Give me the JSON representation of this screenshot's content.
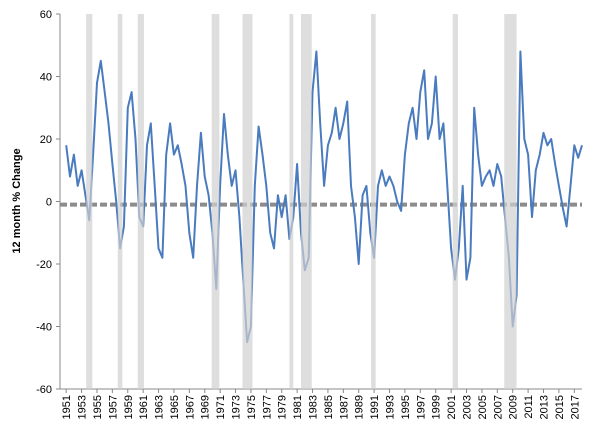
{
  "chart_data": {
    "type": "line",
    "y_label": "12 month % Change",
    "x": [
      1951,
      1951.5,
      1952,
      1952.5,
      1953,
      1953.5,
      1954,
      1954.5,
      1955,
      1955.5,
      1956,
      1956.5,
      1957,
      1957.5,
      1958,
      1958.5,
      1959,
      1959.5,
      1960,
      1960.5,
      1961,
      1961.5,
      1962,
      1962.5,
      1963,
      1963.5,
      1964,
      1964.5,
      1965,
      1965.5,
      1966,
      1966.5,
      1967,
      1967.5,
      1968,
      1968.5,
      1969,
      1969.5,
      1970,
      1970.5,
      1971,
      1971.5,
      1972,
      1972.5,
      1973,
      1973.5,
      1974,
      1974.5,
      1975,
      1975.5,
      1976,
      1976.5,
      1977,
      1977.5,
      1978,
      1978.5,
      1979,
      1979.5,
      1980,
      1980.5,
      1981,
      1981.5,
      1982,
      1982.5,
      1983,
      1983.5,
      1984,
      1984.5,
      1985,
      1985.5,
      1986,
      1986.5,
      1987,
      1987.5,
      1988,
      1988.5,
      1989,
      1989.5,
      1990,
      1990.5,
      1991,
      1991.5,
      1992,
      1992.5,
      1993,
      1993.5,
      1994,
      1994.5,
      1995,
      1995.5,
      1996,
      1996.5,
      1997,
      1997.5,
      1998,
      1998.5,
      1999,
      1999.5,
      2000,
      2000.5,
      2001,
      2001.5,
      2002,
      2002.5,
      2003,
      2003.5,
      2004,
      2004.5,
      2005,
      2005.5,
      2006,
      2006.5,
      2007,
      2007.5,
      2008,
      2008.5,
      2009,
      2009.5,
      2010,
      2010.5,
      2011,
      2011.5,
      2012,
      2012.5,
      2013,
      2013.5,
      2014,
      2014.5,
      2015,
      2015.5,
      2016,
      2016.5,
      2017,
      2017.5,
      2018
    ],
    "series": [
      {
        "color": "#4a7bbf",
        "values": [
          18,
          8,
          15,
          5,
          10,
          2,
          -6,
          15,
          38,
          45,
          35,
          25,
          12,
          0,
          -15,
          -8,
          30,
          35,
          20,
          -5,
          -8,
          18,
          25,
          5,
          -15,
          -18,
          15,
          25,
          15,
          18,
          12,
          5,
          -10,
          -18,
          5,
          22,
          8,
          2,
          -10,
          -28,
          5,
          28,
          15,
          5,
          10,
          -5,
          -25,
          -45,
          -40,
          5,
          24,
          15,
          5,
          -10,
          -15,
          2,
          -5,
          2,
          -12,
          -5,
          12,
          -10,
          -22,
          -18,
          35,
          48,
          25,
          5,
          18,
          22,
          30,
          20,
          25,
          32,
          5,
          -5,
          -20,
          2,
          5,
          -10,
          -18,
          5,
          10,
          5,
          8,
          5,
          0,
          -3,
          15,
          25,
          30,
          20,
          35,
          42,
          20,
          25,
          40,
          20,
          25,
          5,
          -15,
          -25,
          -15,
          5,
          -25,
          -18,
          30,
          15,
          5,
          8,
          10,
          5,
          12,
          8,
          -5,
          -18,
          -40,
          -30,
          48,
          20,
          15,
          -5,
          10,
          15,
          22,
          18,
          20,
          12,
          5,
          -2,
          -8,
          5,
          18,
          14,
          18
        ]
      }
    ],
    "recessions": [
      [
        1953.6,
        1954.4
      ],
      [
        1957.7,
        1958.3
      ],
      [
        1960.3,
        1961.1
      ],
      [
        1969.9,
        1970.9
      ],
      [
        1973.9,
        1975.2
      ],
      [
        1980.0,
        1980.5
      ],
      [
        1981.5,
        1982.9
      ],
      [
        1990.6,
        1991.2
      ],
      [
        2001.2,
        2001.9
      ],
      [
        2007.9,
        2009.5
      ]
    ],
    "recession_color": "#d0d0d0",
    "hline": -1,
    "hline_color": "#8c8c8c",
    "xlim": [
      1950.2,
      2018.0
    ],
    "xticks": [
      1951,
      1953,
      1955,
      1957,
      1959,
      1961,
      1963,
      1965,
      1967,
      1969,
      1971,
      1973,
      1975,
      1977,
      1979,
      1981,
      1983,
      1985,
      1987,
      1989,
      1991,
      1993,
      1995,
      1997,
      1999,
      2001,
      2003,
      2005,
      2007,
      2009,
      2011,
      2013,
      2015,
      2017
    ],
    "ylim": [
      -60,
      60
    ],
    "yticks": [
      -60,
      -40,
      -20,
      0,
      20,
      40,
      60
    ]
  }
}
